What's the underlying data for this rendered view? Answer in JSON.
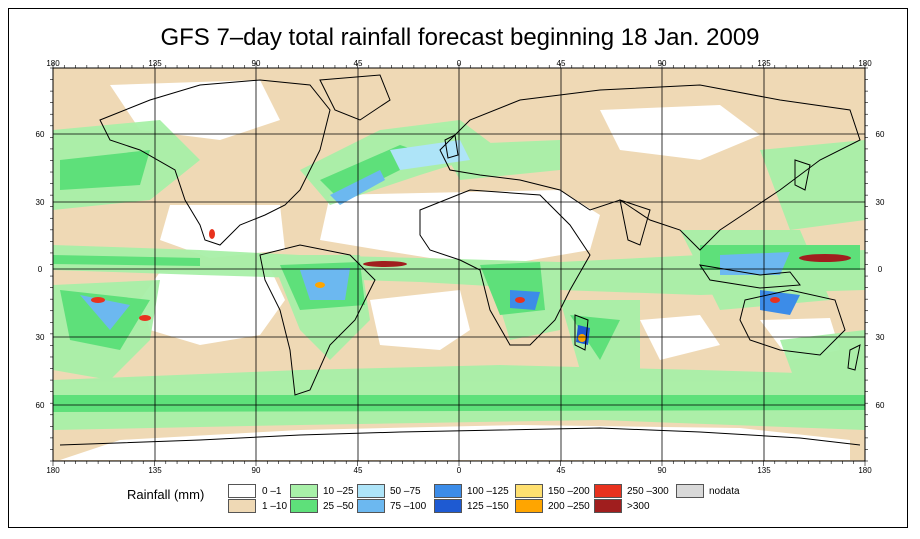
{
  "title": "GFS 7–day total rainfall forecast beginning 18 Jan. 2009",
  "axes": {
    "top_lon_labels": [
      "180",
      "135",
      "90",
      "45",
      "0",
      "45",
      "90",
      "135",
      "180"
    ],
    "bottom_lon_labels": [
      "180",
      "135",
      "90",
      "45",
      "0",
      "45",
      "90",
      "135",
      "180"
    ],
    "lat_labels": [
      "60",
      "30",
      "0",
      "30",
      "60"
    ]
  },
  "legend": {
    "title": "Rainfall (mm)",
    "items": [
      {
        "label": "0 –1",
        "color": "#ffffff"
      },
      {
        "label": "1 –10",
        "color": "#efd9b5"
      },
      {
        "label": "10 –25",
        "color": "#a8f0a8"
      },
      {
        "label": "25 –50",
        "color": "#5ee07a"
      },
      {
        "label": "50 –75",
        "color": "#aee4f8"
      },
      {
        "label": "75 –100",
        "color": "#6cb8f0"
      },
      {
        "label": "100 –125",
        "color": "#3c8ce8"
      },
      {
        "label": "125 –150",
        "color": "#1e5ad2"
      },
      {
        "label": "150 –200",
        "color": "#ffe070"
      },
      {
        "label": "200 –250",
        "color": "#ffa500"
      },
      {
        "label": "250 –300",
        "color": "#e8321e"
      },
      {
        "label": ">300",
        "color": "#a01e1e"
      },
      {
        "label": "nodata",
        "color": "#d9d9d9"
      }
    ]
  }
}
